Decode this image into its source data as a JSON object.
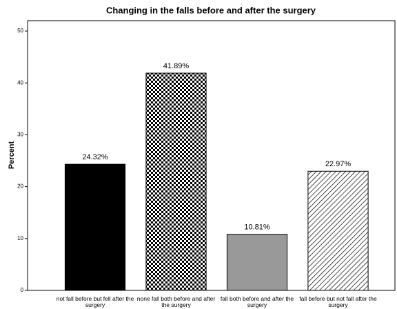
{
  "chart_data": {
    "type": "bar",
    "title": "Changing  in the falls before and after the surgery",
    "y_label": "Percent",
    "categories": [
      "not fall before but fell after the surgery",
      "none fall both before and after the surgery",
      "fall both before and after the surgery",
      "fall before but not fall after the surgery"
    ],
    "values": [
      24.32,
      41.89,
      10.81,
      22.97
    ],
    "value_labels": [
      "24.32%",
      "41.89%",
      "10.81%",
      "22.97%"
    ],
    "patterns": [
      "solid-black",
      "checkerboard",
      "solid-gray",
      "diagonal-hatch"
    ],
    "ylim": [
      0,
      52
    ],
    "yticks": [
      0,
      10,
      20,
      30,
      40,
      50
    ],
    "grid": false
  }
}
